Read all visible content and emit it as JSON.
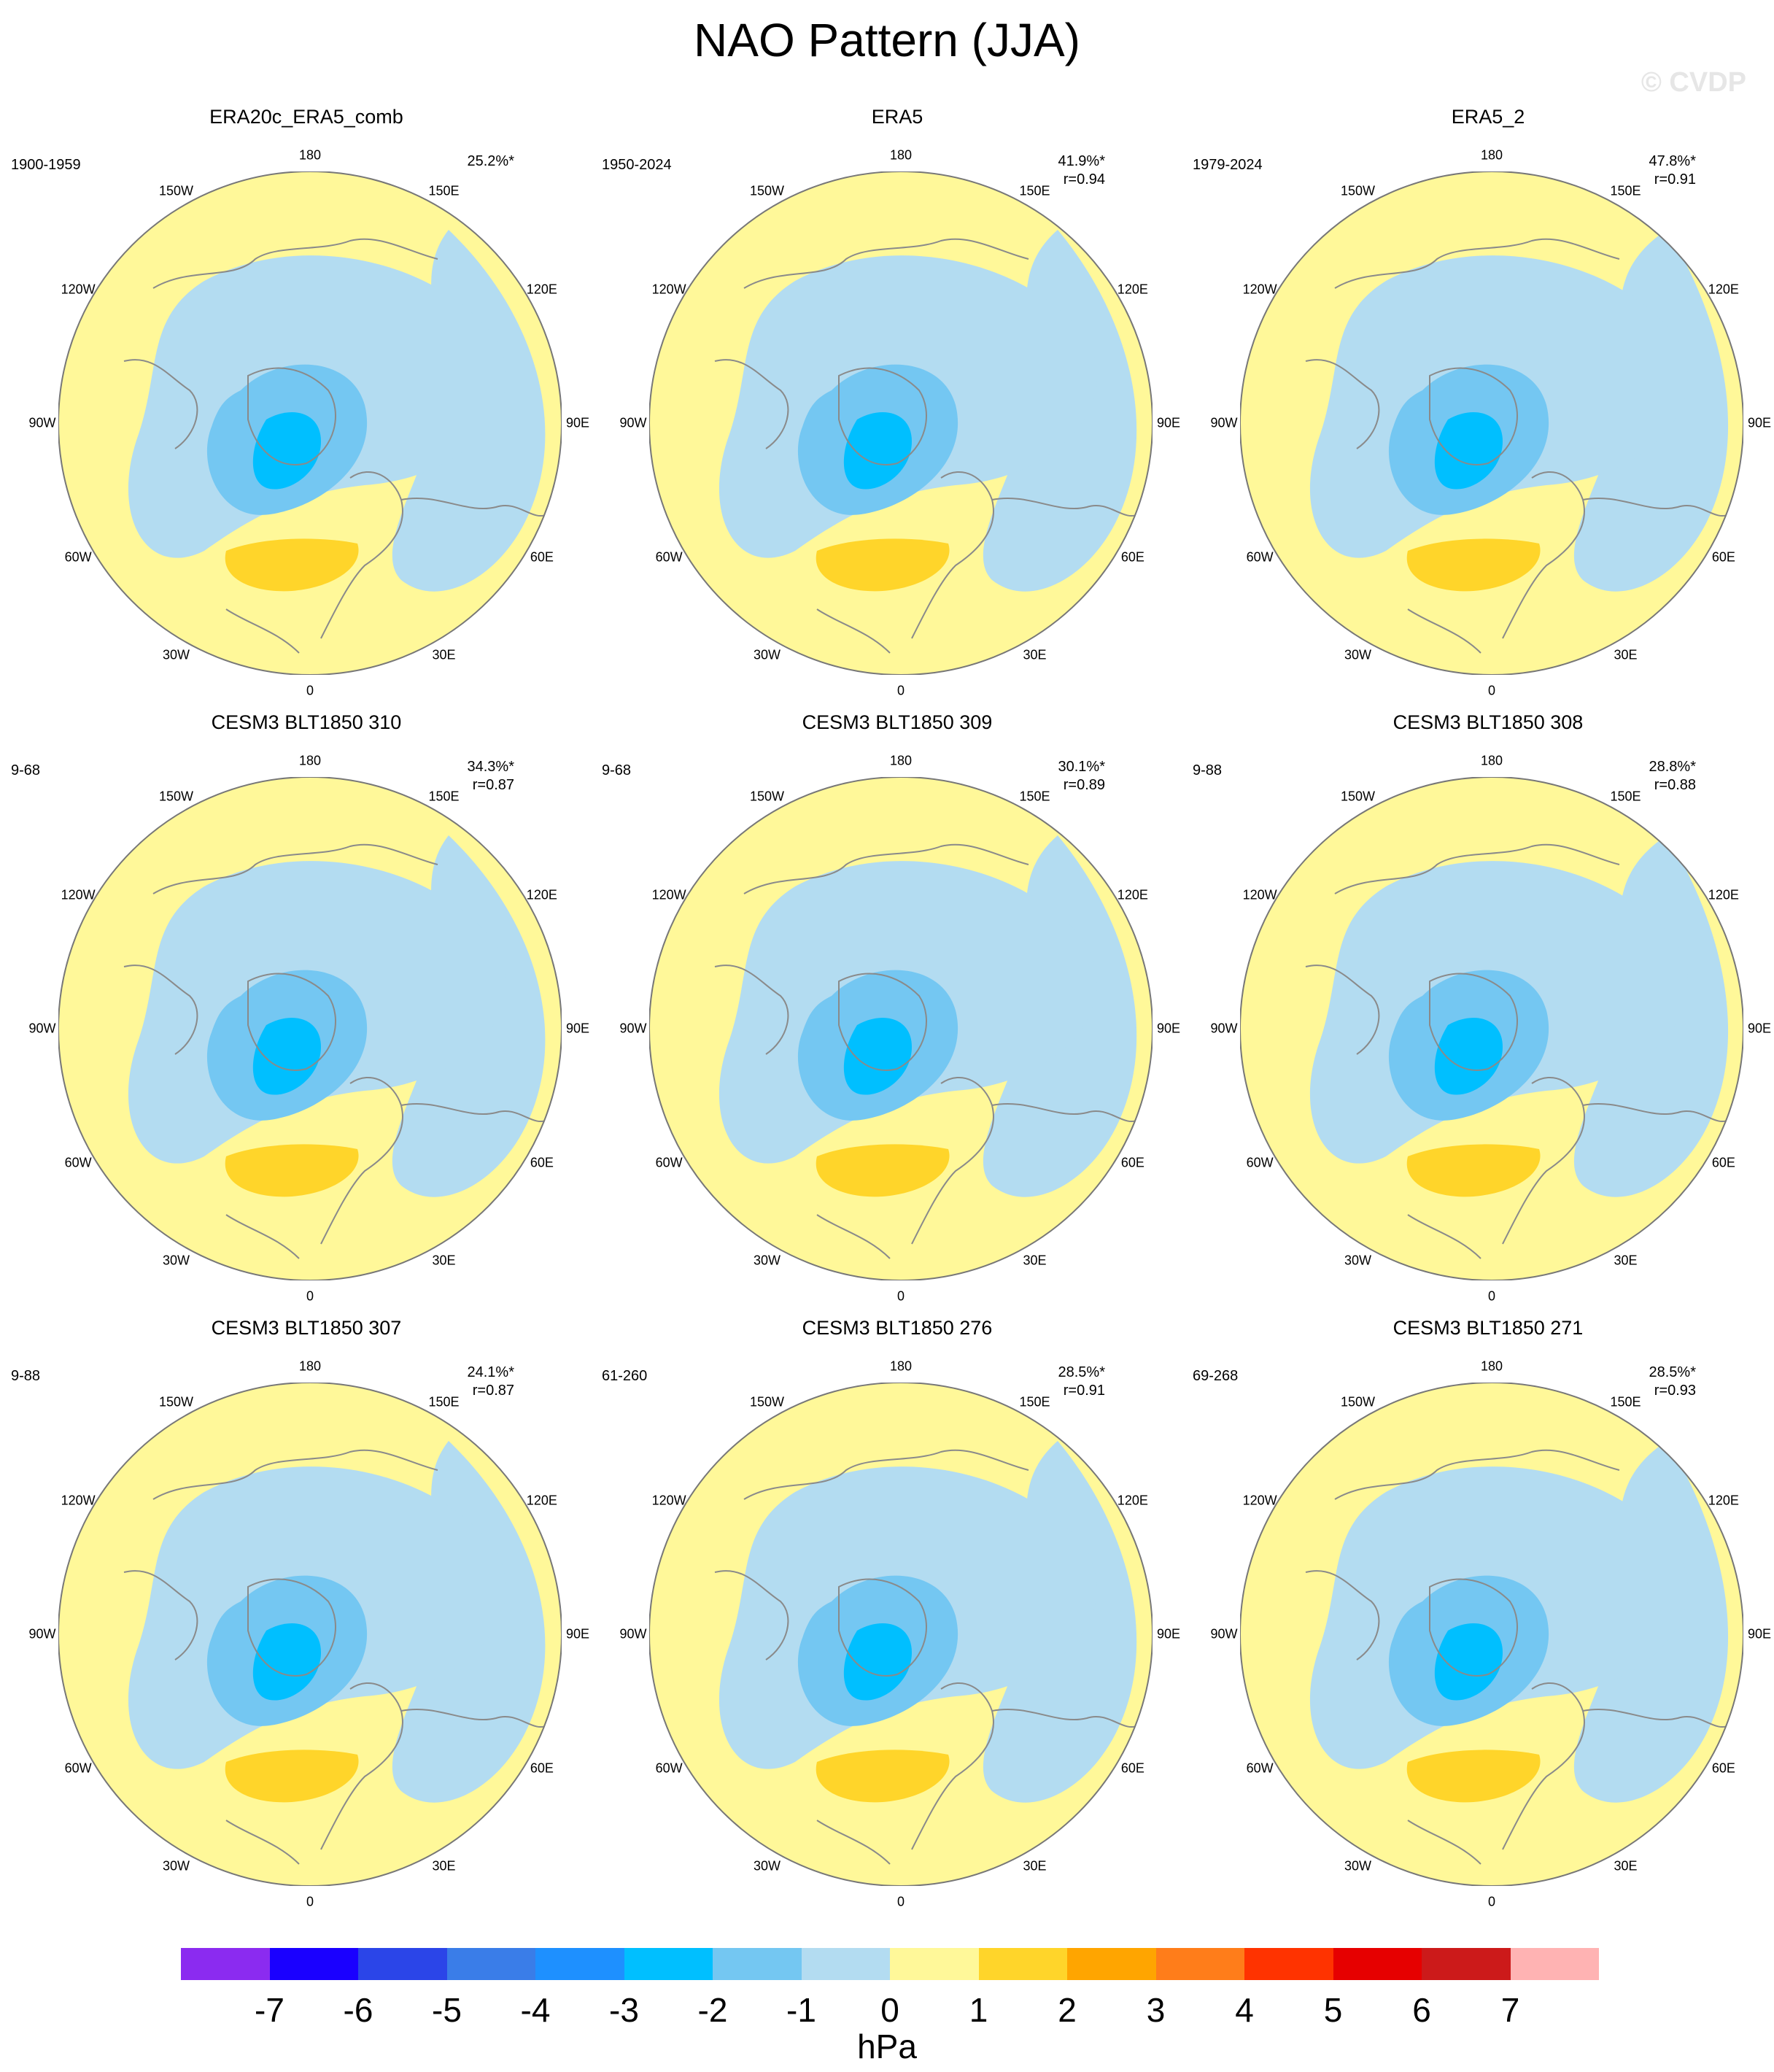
{
  "title": "NAO Pattern (JJA)",
  "watermark": "© CVDP",
  "units": "hPa",
  "longitude_labels": {
    "n": "180",
    "nw": "150W",
    "ne": "150E",
    "wnw": "120W",
    "ene": "120E",
    "w": "90W",
    "e": "90E",
    "wsw": "60W",
    "ese": "60E",
    "sw": "30W",
    "se": "30E",
    "s": "0"
  },
  "colors": {
    "neg_1": "#b3dcf1",
    "neg_2": "#74c7f2",
    "neg_3": "#00bfff",
    "pos_1": "#fff899",
    "pos_2": "#ffd52a",
    "coast": "#8a8a8a",
    "outline": "#777777"
  },
  "panels": [
    {
      "title": "ERA20c_ERA5_comb",
      "period": "1900-1959",
      "pct": "25.2%*",
      "r": ""
    },
    {
      "title": "ERA5",
      "period": "1950-2024",
      "pct": "41.9%*",
      "r": "r=0.94"
    },
    {
      "title": "ERA5_2",
      "period": "1979-2024",
      "pct": "47.8%*",
      "r": "r=0.91"
    },
    {
      "title": "CESM3 BLT1850 310",
      "period": "9-68",
      "pct": "34.3%*",
      "r": "r=0.87"
    },
    {
      "title": "CESM3 BLT1850 309",
      "period": "9-68",
      "pct": "30.1%*",
      "r": "r=0.89"
    },
    {
      "title": "CESM3 BLT1850 308",
      "period": "9-88",
      "pct": "28.8%*",
      "r": "r=0.88"
    },
    {
      "title": "CESM3 BLT1850 307",
      "period": "9-88",
      "pct": "24.1%*",
      "r": "r=0.87"
    },
    {
      "title": "CESM3 BLT1850 276",
      "period": "61-260",
      "pct": "28.5%*",
      "r": "r=0.91"
    },
    {
      "title": "CESM3 BLT1850 271",
      "period": "69-268",
      "pct": "28.5%*",
      "r": "r=0.93"
    }
  ],
  "colorbar": {
    "colors": [
      "#8b2bf0",
      "#1a00ff",
      "#2b45e8",
      "#3a7de8",
      "#1e90ff",
      "#00bfff",
      "#74c7f2",
      "#b3dcf1",
      "#fff899",
      "#ffd52a",
      "#ffa500",
      "#ff7d1a",
      "#ff3300",
      "#e60000",
      "#cc1a1a",
      "#ffb3b3"
    ],
    "labels": [
      "-7",
      "-6",
      "-5",
      "-4",
      "-3",
      "-2",
      "-1",
      "0",
      "1",
      "2",
      "3",
      "4",
      "5",
      "6",
      "7"
    ]
  }
}
